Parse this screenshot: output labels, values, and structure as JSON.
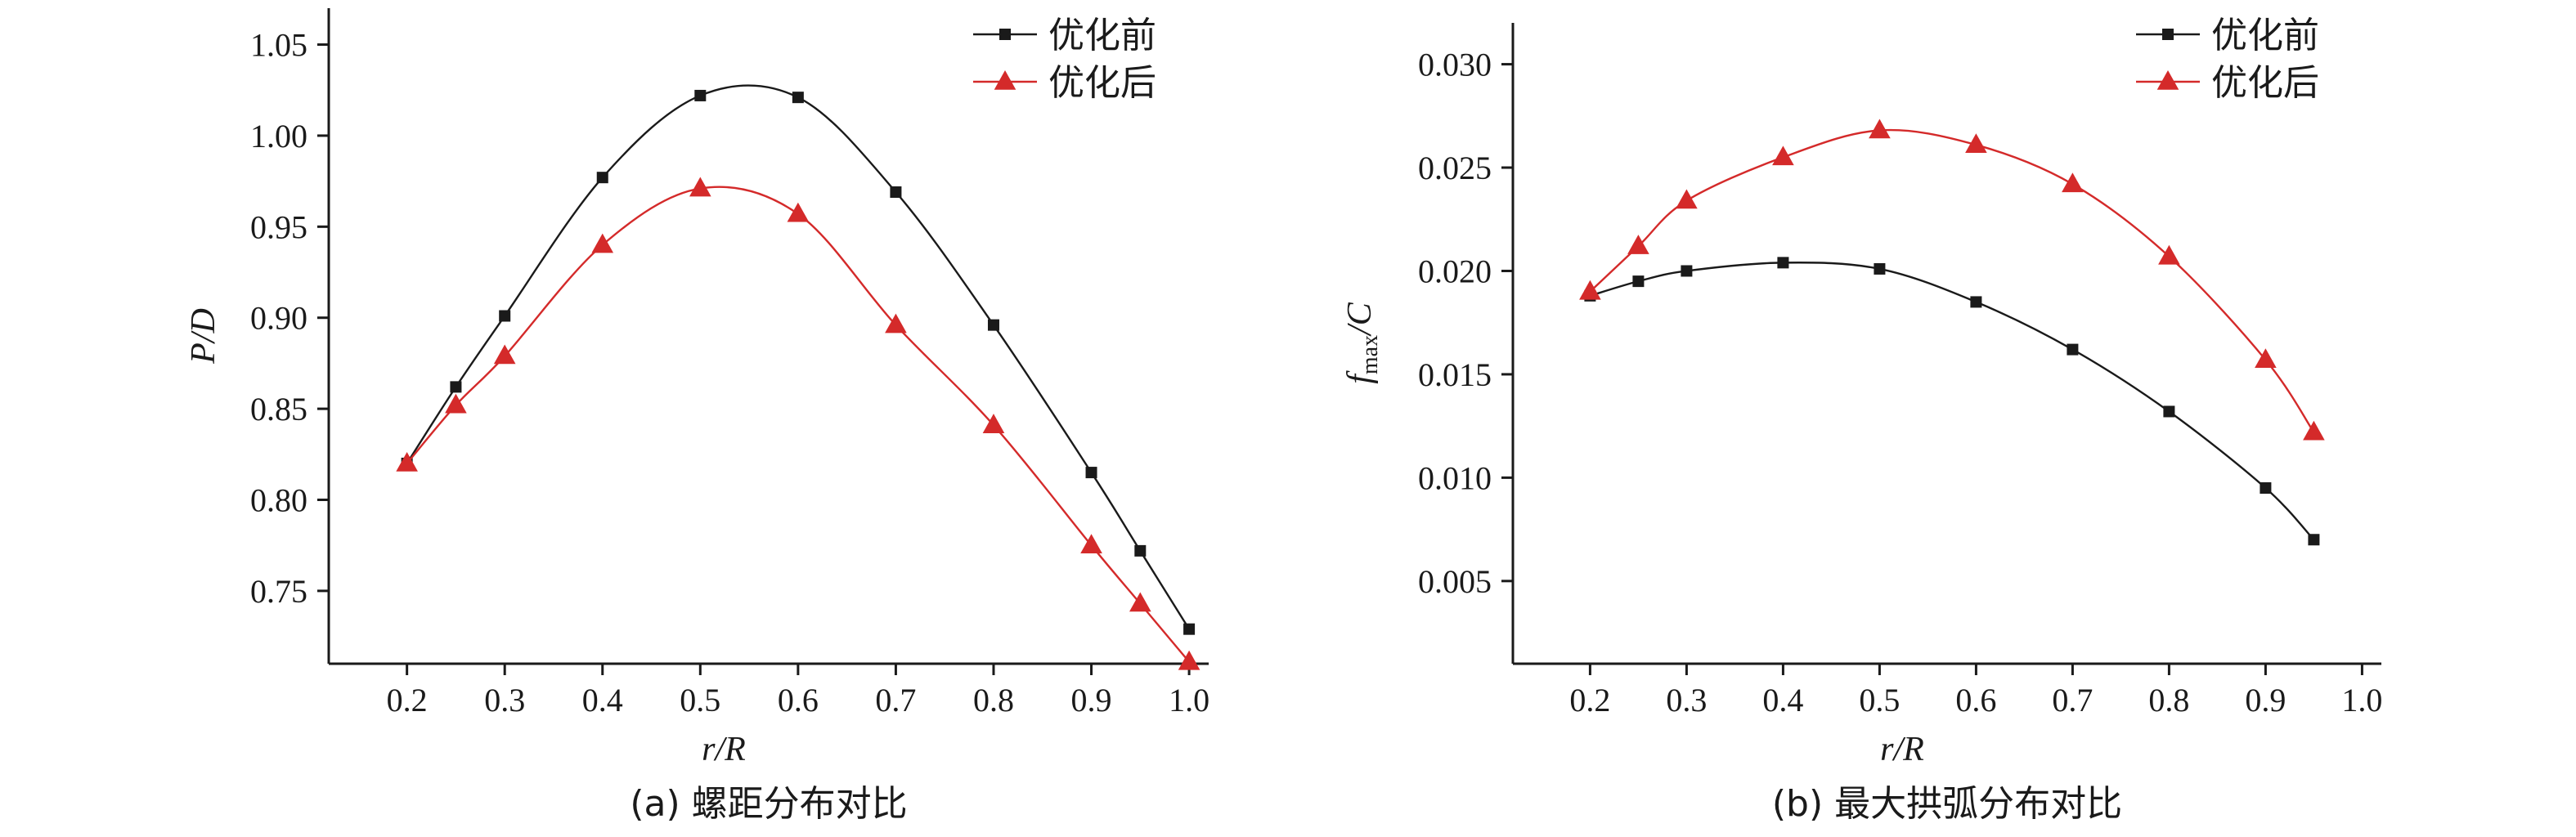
{
  "colors": {
    "before": "#1a1a1a",
    "after": "#d42a2a",
    "axis": "#1a1a1a"
  },
  "chart_data": [
    {
      "type": "line",
      "caption": "(a) 螺距分布对比",
      "xlabel": "r/R",
      "ylabel": "P/D",
      "xlim": [
        0.12,
        1.02
      ],
      "ylim": [
        0.71,
        1.07
      ],
      "xticks": [
        0.2,
        0.3,
        0.4,
        0.5,
        0.6,
        0.7,
        0.8,
        0.9,
        1.0
      ],
      "xtick_labels": [
        "0.2",
        "0.3",
        "0.4",
        "0.5",
        "0.6",
        "0.7",
        "0.8",
        "0.9",
        "1.0"
      ],
      "yticks": [
        0.75,
        0.8,
        0.85,
        0.9,
        0.95,
        1.0,
        1.05
      ],
      "ytick_labels": [
        "0.75",
        "0.80",
        "0.85",
        "0.90",
        "0.95",
        "1.00",
        "1.05"
      ],
      "legend_position": "top-right",
      "series": [
        {
          "name": "优化前",
          "marker": "square",
          "color": "#1a1a1a",
          "x": [
            0.2,
            0.25,
            0.3,
            0.4,
            0.5,
            0.6,
            0.7,
            0.8,
            0.9,
            0.95,
            1.0
          ],
          "y": [
            0.82,
            0.862,
            0.901,
            0.977,
            1.022,
            1.021,
            0.969,
            0.896,
            0.815,
            0.772,
            0.729
          ]
        },
        {
          "name": "优化后",
          "marker": "triangle",
          "color": "#d42a2a",
          "x": [
            0.2,
            0.25,
            0.3,
            0.4,
            0.5,
            0.6,
            0.7,
            0.8,
            0.9,
            0.95,
            1.0
          ],
          "y": [
            0.82,
            0.852,
            0.879,
            0.94,
            0.971,
            0.957,
            0.896,
            0.841,
            0.775,
            0.743,
            0.711
          ]
        }
      ]
    },
    {
      "type": "line",
      "caption": "(b) 最大拱弧分布对比",
      "xlabel": "r/R",
      "ylabel_main": "f",
      "ylabel_sub": "max",
      "ylabel_rest": "/C",
      "xlim": [
        0.12,
        1.02
      ],
      "ylim": [
        0.001,
        0.032
      ],
      "xticks": [
        0.2,
        0.3,
        0.4,
        0.5,
        0.6,
        0.7,
        0.8,
        0.9,
        1.0
      ],
      "xtick_labels": [
        "0.2",
        "0.3",
        "0.4",
        "0.5",
        "0.6",
        "0.7",
        "0.8",
        "0.9",
        "1.0"
      ],
      "yticks": [
        0.005,
        0.01,
        0.015,
        0.02,
        0.025,
        0.03
      ],
      "ytick_labels": [
        "0.005",
        "0.010",
        "0.015",
        "0.020",
        "0.025",
        "0.030"
      ],
      "legend_position": "top-right",
      "series": [
        {
          "name": "优化前",
          "marker": "square",
          "color": "#1a1a1a",
          "x": [
            0.2,
            0.25,
            0.3,
            0.4,
            0.5,
            0.6,
            0.7,
            0.8,
            0.9,
            0.95
          ],
          "y": [
            0.0188,
            0.0195,
            0.02,
            0.0204,
            0.0201,
            0.0185,
            0.0162,
            0.0132,
            0.0095,
            0.007
          ]
        },
        {
          "name": "优化后",
          "marker": "triangle",
          "color": "#d42a2a",
          "x": [
            0.2,
            0.25,
            0.3,
            0.4,
            0.5,
            0.6,
            0.7,
            0.8,
            0.9,
            0.95
          ],
          "y": [
            0.019,
            0.0212,
            0.0234,
            0.0255,
            0.0268,
            0.0261,
            0.0242,
            0.0207,
            0.0157,
            0.0122
          ]
        }
      ]
    }
  ]
}
